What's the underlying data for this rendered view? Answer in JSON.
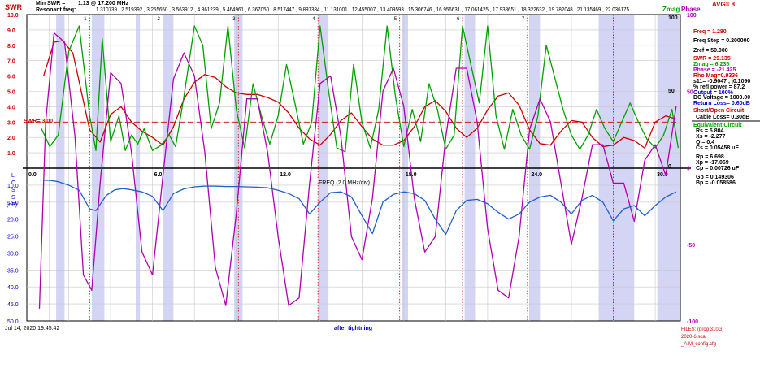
{
  "header": {
    "min_swr_label": "Min SWR =",
    "min_swr_value": "1.13 @ 17.200 MHz",
    "resonant_label": "Resonant freq:",
    "resonant_values": "1.310739 , 2.519392 , 3.255650 , 3.563912 , 4.361239 , 5.464961 , 6.367050 , 8.517447 , 9.897384 , 11.131001 , 12.455007 , 13.409593 , 15.306746 , 16.956631 , 17.061425 , 17.938651 , 18.322632 , 19.782048 , 21.135469 , 22.036175",
    "avg_label": "AVG= 8"
  },
  "axis_titles": {
    "swr": "SWR",
    "zmag": "Zmag",
    "phase": "Phase",
    "loss": [
      "L",
      "O",
      "S",
      "S",
      "(dB)"
    ],
    "freq": "FREQ (2.0 MHz/div)"
  },
  "swr_ref_label": "SWR= 3.00",
  "side_panel": {
    "freq": "Freq = 1.280",
    "freq_step": "Freq Step = 0.200000",
    "zref": "Zref =    50.000",
    "swr": "SWR  =  29.135",
    "zmag": "Zmag =   6.235",
    "phase": "Phase =  -21.425",
    "rho_mag": "Rho Mag=0.9336",
    "s11": "s11= -0.9047 , j0.1090",
    "refl_power": "% refl power = 87.2",
    "output": "Output = 100%",
    "dc_voltage": "DC Voltage =  1000.00",
    "return_loss": "Return Loss= 0.60dB",
    "short_open": "Short/Open Circuit",
    "cable_loss": "Cable Loss= 0.30dB",
    "equiv_title": "Equivalent Circuit",
    "rs": "Rs =  5.804",
    "xs": "Xs =  -2.277",
    "q": "Q  =  0.4",
    "cs": "Cs =  0.05458  uF",
    "rp": "Rp =  6.698",
    "xp": "Xp =  -17.069",
    "cp": "Cp =  0.00726  uF",
    "gp": "Gp =  0.149306",
    "bp": "Bp = -0.058586"
  },
  "footer": {
    "timestamp": "Jul 14, 2020   19:45:42",
    "note": "after tightning",
    "files": "FILES:   (prog 310G)",
    "file1": "2020-6.scal",
    "file2": "_AIM_config.cfg"
  },
  "marker_numbers": [
    "1",
    "2",
    "3",
    "4",
    "5",
    "6",
    "7"
  ],
  "colors": {
    "swr": "#cc0000",
    "zmag": "#00a000",
    "phase": "#b000b0",
    "loss": "#1f5fcc",
    "band": "#d4d4f4",
    "marker": "#cc0000",
    "blue_text": "#0000cc"
  },
  "chart_data": {
    "type": "line",
    "title": "",
    "xlabel": "FREQ (2.0 MHz/div)",
    "xlim": [
      0,
      31.2
    ],
    "x_ticks": [
      "0.0",
      "6.0",
      "12.0",
      "18.0",
      "24.0",
      "30.0"
    ],
    "y_left_swr": {
      "label": "SWR",
      "ylim": [
        0,
        10
      ],
      "ticks": [
        "10.0",
        "9.0",
        "8.0",
        "7.0",
        "6.0",
        "5.0",
        "4.0",
        "3.0",
        "2.0",
        "1.0"
      ]
    },
    "y_left_loss": {
      "label": "LOSS (dB)",
      "ylim": [
        0,
        50
      ],
      "ticks": [
        "10.0",
        "15.0",
        "20.0",
        "25.0",
        "30.0",
        "35.0",
        "40.0",
        "45.0",
        "50.0"
      ]
    },
    "y_right_zmag": {
      "label": "Zmag",
      "ticks": [
        "100",
        "50",
        "0"
      ]
    },
    "y_right_phase": {
      "label": "Phase",
      "ylim": [
        -100,
        100
      ],
      "ticks": [
        "100",
        "50",
        "0",
        "-50",
        "-100"
      ]
    },
    "swr_reference": 3.0,
    "bands": [
      [
        1.4,
        1.8
      ],
      [
        3.1,
        3.7
      ],
      [
        5.2,
        5.4
      ],
      [
        6.5,
        7.0
      ],
      [
        9.9,
        10.3
      ],
      [
        13.9,
        14.4
      ],
      [
        17.9,
        18.2
      ],
      [
        20.9,
        21.4
      ],
      [
        24.0,
        24.5
      ],
      [
        27.3,
        29.0
      ],
      [
        30.1,
        31.2
      ]
    ],
    "markers": [
      3.0,
      6.5,
      10.1,
      13.9,
      17.8,
      20.8,
      23.9,
      28.0
    ],
    "series": [
      {
        "name": "SWR",
        "axis": "swr",
        "x": [
          0.8,
          1.3,
          1.7,
          2.2,
          2.6,
          3.0,
          3.5,
          4.0,
          4.5,
          5.0,
          5.5,
          6.0,
          6.5,
          7.0,
          7.5,
          8.0,
          8.5,
          9.0,
          9.5,
          10.0,
          10.5,
          11.0,
          11.5,
          12.0,
          12.5,
          13.0,
          13.5,
          14.0,
          14.5,
          15.0,
          15.5,
          16.0,
          16.5,
          17.0,
          17.5,
          18.0,
          18.5,
          19.0,
          19.5,
          20.0,
          20.5,
          21.0,
          21.5,
          22.0,
          22.5,
          23.0,
          23.5,
          24.0,
          24.5,
          25.0,
          25.5,
          26.0,
          26.5,
          27.0,
          27.5,
          28.0,
          28.5,
          29.0,
          29.5,
          30.0,
          30.5,
          31.0
        ],
        "values": [
          6.0,
          8.2,
          8.3,
          7.5,
          5.0,
          2.5,
          1.7,
          3.5,
          4.0,
          3.0,
          2.4,
          2.0,
          1.5,
          2.7,
          4.5,
          5.6,
          6.1,
          5.9,
          5.3,
          4.9,
          4.8,
          4.8,
          4.6,
          4.3,
          3.6,
          2.6,
          1.9,
          1.5,
          2.2,
          3.1,
          3.6,
          2.7,
          1.9,
          1.5,
          1.5,
          1.8,
          2.7,
          4.0,
          4.4,
          3.7,
          2.6,
          2.0,
          2.6,
          3.8,
          4.7,
          4.9,
          4.1,
          2.5,
          1.6,
          1.5,
          2.4,
          3.1,
          3.0,
          2.0,
          1.4,
          1.5,
          2.0,
          1.8,
          1.3,
          3.0,
          3.4,
          3.2
        ]
      },
      {
        "name": "Zmag",
        "axis": "zmag",
        "x": [
          0.7,
          1.1,
          1.5,
          2.0,
          2.5,
          3.0,
          3.3,
          3.6,
          4.0,
          4.4,
          4.7,
          5.0,
          5.3,
          5.6,
          6.0,
          6.4,
          6.8,
          7.1,
          7.5,
          8.0,
          8.4,
          8.8,
          9.2,
          9.6,
          10.0,
          10.4,
          10.8,
          11.2,
          11.6,
          12.0,
          12.4,
          12.8,
          13.2,
          13.6,
          14.0,
          14.4,
          14.8,
          15.2,
          15.6,
          16.0,
          16.4,
          16.8,
          17.2,
          17.6,
          18.0,
          18.4,
          18.8,
          19.2,
          19.6,
          20.0,
          20.4,
          20.8,
          21.2,
          21.6,
          22.0,
          22.4,
          22.8,
          23.2,
          23.6,
          24.0,
          24.4,
          24.8,
          25.2,
          25.6,
          26.0,
          26.4,
          26.8,
          27.2,
          27.6,
          28.0,
          28.4,
          28.8,
          29.2,
          29.6,
          30.0,
          30.4,
          30.8,
          31.1
        ],
        "values": [
          0.2,
          0.06,
          0.15,
          0.8,
          1.0,
          0.3,
          0.03,
          0.9,
          0.1,
          0.3,
          0.03,
          0.15,
          0.08,
          0.2,
          0.03,
          0.07,
          0.15,
          0.06,
          0.45,
          1.0,
          0.85,
          0.2,
          0.4,
          1.0,
          0.35,
          0.05,
          0.55,
          0.3,
          0.08,
          0.3,
          0.7,
          0.4,
          0.08,
          0.25,
          1.0,
          0.5,
          0.05,
          0.02,
          0.7,
          0.25,
          0.05,
          0.35,
          1.0,
          0.45,
          0.06,
          0.35,
          0.1,
          0.55,
          0.35,
          0.04,
          0.15,
          1.0,
          0.7,
          0.4,
          1.0,
          0.3,
          0.04,
          0.35,
          0.15,
          0.04,
          0.3,
          0.85,
          0.6,
          0.35,
          0.15,
          0.04,
          0.15,
          0.35,
          0.2,
          0.1,
          0.25,
          0.4,
          0.25,
          0.12,
          0.05,
          0.15,
          0.35,
          0.05
        ]
      },
      {
        "name": "Phase",
        "axis": "phase",
        "x": [
          0.6,
          0.9,
          1.3,
          1.8,
          2.3,
          2.7,
          3.1,
          3.5,
          4.0,
          4.5,
          5.0,
          5.5,
          6.0,
          6.5,
          7.0,
          7.5,
          8.0,
          8.5,
          9.0,
          9.5,
          10.0,
          10.5,
          11.0,
          11.5,
          12.0,
          12.5,
          13.0,
          13.5,
          14.0,
          14.5,
          15.0,
          15.5,
          16.0,
          16.5,
          17.0,
          17.5,
          18.0,
          18.5,
          19.0,
          19.5,
          20.0,
          20.5,
          21.0,
          21.5,
          22.0,
          22.5,
          23.0,
          23.5,
          24.0,
          24.5,
          25.0,
          25.5,
          26.0,
          26.5,
          27.0,
          27.5,
          28.0,
          28.5,
          29.0,
          29.5,
          30.0,
          30.5,
          31.0
        ],
        "values": [
          -92,
          30,
          88,
          82,
          20,
          -70,
          -80,
          -10,
          62,
          55,
          10,
          -55,
          -70,
          -5,
          58,
          75,
          60,
          10,
          -65,
          -90,
          -30,
          45,
          45,
          10,
          -45,
          -90,
          -85,
          -10,
          55,
          60,
          20,
          -45,
          -60,
          -20,
          50,
          65,
          40,
          -20,
          -55,
          -45,
          20,
          65,
          65,
          30,
          -40,
          -80,
          -85,
          -45,
          25,
          45,
          30,
          -10,
          -50,
          -20,
          15,
          15,
          -10,
          -10,
          -35,
          5,
          15,
          -5,
          40
        ]
      },
      {
        "name": "Return Loss",
        "axis": "loss",
        "x": [
          0.8,
          1.1,
          1.5,
          2.0,
          2.5,
          3.0,
          3.3,
          3.8,
          4.2,
          4.6,
          5.0,
          5.5,
          6.0,
          6.5,
          7.0,
          7.5,
          8.0,
          8.5,
          9.0,
          9.5,
          10.0,
          10.5,
          11.0,
          11.5,
          12.0,
          12.5,
          13.0,
          13.5,
          14.0,
          14.5,
          15.0,
          15.5,
          16.0,
          16.5,
          17.0,
          17.5,
          18.0,
          18.5,
          19.0,
          19.5,
          20.0,
          20.5,
          21.0,
          21.5,
          22.0,
          22.5,
          23.0,
          23.5,
          24.0,
          24.5,
          25.0,
          25.5,
          26.0,
          26.5,
          27.0,
          27.5,
          28.0,
          28.5,
          29.0,
          29.5,
          30.0,
          30.5,
          31.0
        ],
        "values": [
          8.6,
          8.6,
          9.0,
          10.0,
          11.5,
          17.0,
          17.5,
          13.0,
          11.4,
          11.0,
          11.4,
          12.0,
          13.3,
          17.5,
          12.5,
          11.1,
          10.5,
          10.3,
          10.3,
          10.4,
          10.4,
          10.5,
          10.6,
          10.8,
          11.5,
          12.5,
          14.0,
          18.5,
          15.0,
          12.2,
          12.0,
          13.5,
          19.0,
          24.3,
          15.0,
          12.7,
          12.0,
          12.5,
          14.5,
          20.0,
          24.5,
          17.5,
          14.5,
          14.2,
          15.5,
          18.0,
          20.0,
          18.5,
          15.0,
          13.5,
          13.0,
          15.0,
          18.5,
          14.5,
          13.0,
          15.0,
          20.5,
          17.0,
          16.0,
          19.0,
          16.0,
          13.5,
          12.0
        ]
      }
    ]
  }
}
